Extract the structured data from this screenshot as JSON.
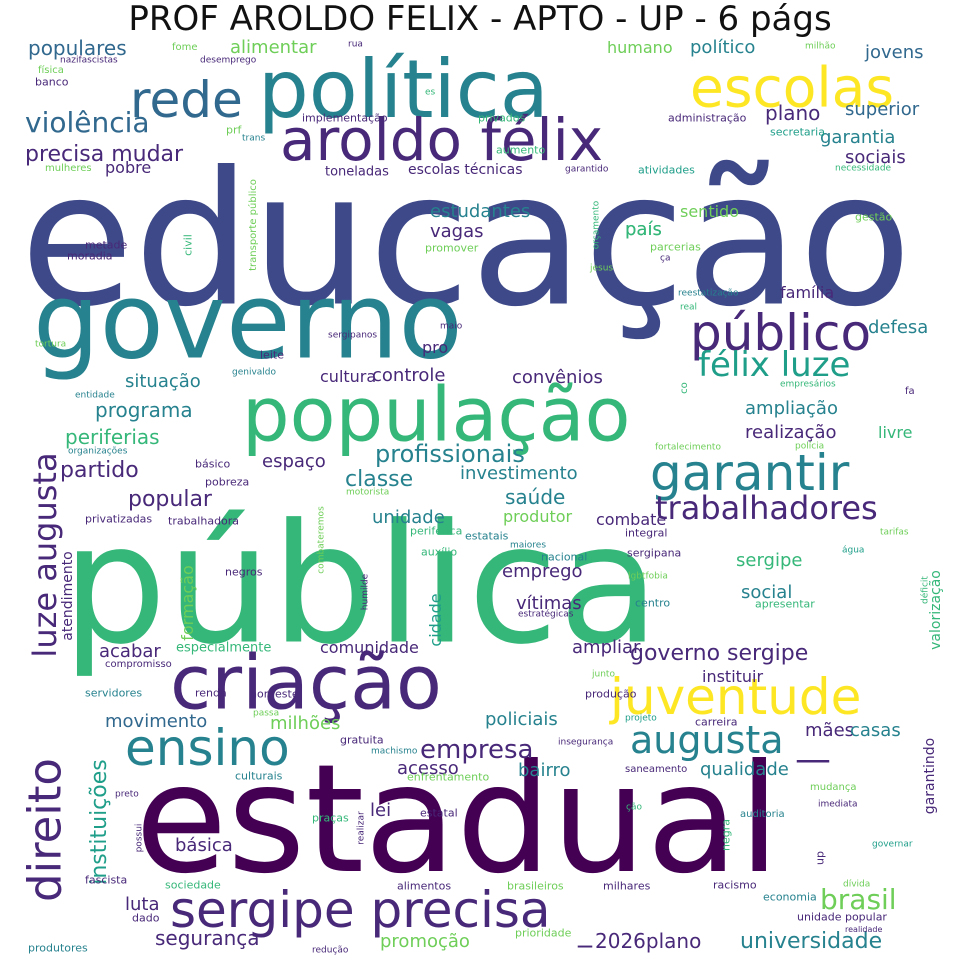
{
  "title": "PROF AROLDO FELIX - APTO - UP - 6 págs",
  "palette": [
    "#440154",
    "#482878",
    "#3e4989",
    "#31688e",
    "#26828e",
    "#1f9e89",
    "#35b779",
    "#6ece58",
    "#b5de2b",
    "#fde725"
  ],
  "words": [
    "educação",
    "pública",
    "estadual",
    "governo",
    "política",
    "população",
    "criação",
    "aroldo félix",
    "escolas",
    "rede",
    "público",
    "garantir",
    "juventude",
    "sergipe precisa",
    "ensino",
    "luze augusta",
    "direito",
    "félix luze",
    "augusta",
    "trabalhadores",
    "violência",
    "empresa",
    "brasil",
    "precisa mudar",
    "profissionais",
    "governo sergipe",
    "universidade",
    "instituições",
    "plano",
    "populares",
    "alimentar",
    "humano",
    "político",
    "jovens",
    "superior",
    "garantia",
    "sociais",
    "pobre",
    "estudantes",
    "vagas",
    "país",
    "sentido",
    "família",
    "defesa",
    "situação",
    "programa",
    "periferias",
    "partido",
    "popular",
    "cultura",
    "controle",
    "convênios",
    "ampliação",
    "realização",
    "livre",
    "classe",
    "investimento",
    "saúde",
    "produtor",
    "unidade",
    "combate",
    "emprego",
    "cidade",
    "vítimas",
    "social",
    "sergipe",
    "comunidade",
    "acabar",
    "ampliar",
    "instituir",
    "movimento",
    "milhões",
    "policiais",
    "mães",
    "casas",
    "acesso",
    "bairro",
    "qualidade",
    "lei",
    "básica",
    "luta",
    "segurança",
    "promoção",
    "2026plano",
    "espaço",
    "formação",
    "atendimento",
    "valorização",
    "garantindo",
    "pro",
    "especialmente",
    "escolas técnicas",
    "toneladas",
    "implementação",
    "administração",
    "privados",
    "aumento",
    "atividades",
    "garantido",
    "secretaria",
    "necessidade",
    "gestão",
    "parcerias",
    "promover",
    "orçamento",
    "transporte público",
    "civil",
    "metade",
    "moradia",
    "jesus",
    "reestatização",
    "real",
    "tortura",
    "sergipanos",
    "maio",
    "leite",
    "genivaldo",
    "entidade",
    "empresários",
    "fortalecimento",
    "polícia",
    "organizações",
    "básico",
    "pobreza",
    "motorista",
    "privatizadas",
    "trabalhadora",
    "periférica",
    "estatais",
    "integral",
    "combateremos",
    "auxílio",
    "maiores",
    "nacional",
    "sergipana",
    "negros",
    "humilde",
    "lgbtfobia",
    "centro",
    "estratégicas",
    "apresentar",
    "déficit",
    "tarifas",
    "água",
    "compromisso",
    "servidores",
    "renda",
    "nordeste",
    "produção",
    "junto",
    "passa",
    "projeto",
    "carreira",
    "gratuita",
    "machismo",
    "insegurança",
    "culturais",
    "enfrentamento",
    "saneamento",
    "mudança",
    "preto",
    "praças",
    "realizar",
    "estatal",
    "ção",
    "auditoria",
    "imediata",
    "possui",
    "negra",
    "governar",
    "up",
    "fascista",
    "sociedade",
    "alimentos",
    "brasileiros",
    "milhares",
    "racismo",
    "dívida",
    "economia",
    "realidade",
    "unidade popular",
    "dado",
    "produtores",
    "redução",
    "prioridade",
    "fome",
    "rua",
    "milhão",
    "nazifascistas",
    "desemprego",
    "física",
    "banco",
    "es",
    "prf",
    "trans",
    "mulheres",
    "ça",
    "co",
    "fa",
    "país",
    "—",
    "_"
  ]
}
